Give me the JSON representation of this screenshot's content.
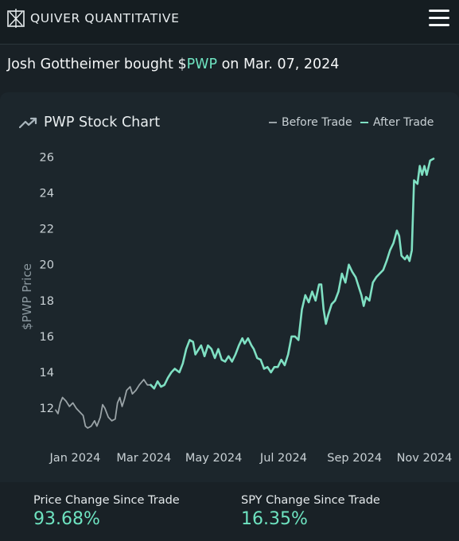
{
  "header": {
    "brand": "QUIVER QUANTITATIVE",
    "logo_icon": "quiver-logo-icon",
    "menu_icon": "hamburger-menu-icon"
  },
  "headline": {
    "prefix": "Josh Gottheimer bought $",
    "ticker": "PWP",
    "suffix": " on Mar. 07, 2024"
  },
  "colors": {
    "background": "#192126",
    "accent": "#6ee3c0",
    "before_trade": "#9aa3a7",
    "after_trade": "#7fe0c3"
  },
  "stats": [
    {
      "label": "Price Change Since Trade",
      "value": "93.68%"
    },
    {
      "label": "SPY Change Since Trade",
      "value": "16.35%"
    }
  ],
  "chart_data": {
    "type": "line",
    "title": "PWP Stock Chart",
    "title_icon": "trending-up-icon",
    "ylabel": "$PWP Price",
    "xlabel": "",
    "ylim": [
      10.5,
      26.5
    ],
    "yticks": [
      12,
      14,
      16,
      18,
      20,
      22,
      24,
      26
    ],
    "xticks": [
      "Jan 2024",
      "Mar 2024",
      "May 2024",
      "Jul 2024",
      "Sep 2024",
      "Nov 2024"
    ],
    "xtick_dates": [
      "2024-01-01",
      "2024-03-01",
      "2024-05-01",
      "2024-07-01",
      "2024-09-01",
      "2024-11-01"
    ],
    "grid": false,
    "legend_position": "top-right",
    "series": [
      {
        "name": "Before Trade",
        "color": "#9aa3a7",
        "points": [
          [
            "2023-12-15",
            11.9
          ],
          [
            "2023-12-17",
            11.7
          ],
          [
            "2023-12-19",
            12.3
          ],
          [
            "2023-12-21",
            12.6
          ],
          [
            "2023-12-24",
            12.4
          ],
          [
            "2023-12-27",
            12.1
          ],
          [
            "2023-12-30",
            12.3
          ],
          [
            "2024-01-02",
            12.0
          ],
          [
            "2024-01-05",
            11.8
          ],
          [
            "2024-01-08",
            11.6
          ],
          [
            "2024-01-10",
            11.0
          ],
          [
            "2024-01-12",
            10.9
          ],
          [
            "2024-01-15",
            11.0
          ],
          [
            "2024-01-18",
            11.3
          ],
          [
            "2024-01-20",
            11.0
          ],
          [
            "2024-01-23",
            11.5
          ],
          [
            "2024-01-25",
            12.2
          ],
          [
            "2024-01-27",
            12.0
          ],
          [
            "2024-01-30",
            11.5
          ],
          [
            "2024-02-02",
            11.3
          ],
          [
            "2024-02-05",
            11.4
          ],
          [
            "2024-02-07",
            12.3
          ],
          [
            "2024-02-09",
            12.6
          ],
          [
            "2024-02-11",
            12.1
          ],
          [
            "2024-02-13",
            12.5
          ],
          [
            "2024-02-15",
            13.0
          ],
          [
            "2024-02-18",
            13.2
          ],
          [
            "2024-02-20",
            12.8
          ],
          [
            "2024-02-23",
            13.0
          ],
          [
            "2024-02-26",
            13.3
          ],
          [
            "2024-03-01",
            13.6
          ],
          [
            "2024-03-04",
            13.3
          ],
          [
            "2024-03-07",
            13.3
          ]
        ]
      },
      {
        "name": "After Trade",
        "color": "#7fe0c3",
        "points": [
          [
            "2024-03-07",
            13.3
          ],
          [
            "2024-03-10",
            13.1
          ],
          [
            "2024-03-13",
            13.5
          ],
          [
            "2024-03-16",
            13.2
          ],
          [
            "2024-03-19",
            13.3
          ],
          [
            "2024-03-22",
            13.7
          ],
          [
            "2024-03-25",
            14.0
          ],
          [
            "2024-03-28",
            14.2
          ],
          [
            "2024-04-01",
            14.0
          ],
          [
            "2024-04-04",
            14.5
          ],
          [
            "2024-04-07",
            15.3
          ],
          [
            "2024-04-10",
            15.8
          ],
          [
            "2024-04-13",
            15.7
          ],
          [
            "2024-04-15",
            15.0
          ],
          [
            "2024-04-18",
            15.3
          ],
          [
            "2024-04-20",
            15.5
          ],
          [
            "2024-04-23",
            14.9
          ],
          [
            "2024-04-26",
            15.5
          ],
          [
            "2024-04-29",
            15.3
          ],
          [
            "2024-05-02",
            14.8
          ],
          [
            "2024-05-05",
            15.3
          ],
          [
            "2024-05-08",
            14.7
          ],
          [
            "2024-05-11",
            14.6
          ],
          [
            "2024-05-14",
            14.9
          ],
          [
            "2024-05-17",
            14.6
          ],
          [
            "2024-05-20",
            15.0
          ],
          [
            "2024-05-23",
            15.5
          ],
          [
            "2024-05-26",
            15.9
          ],
          [
            "2024-05-28",
            15.6
          ],
          [
            "2024-05-31",
            15.9
          ],
          [
            "2024-06-03",
            15.5
          ],
          [
            "2024-06-05",
            15.3
          ],
          [
            "2024-06-08",
            14.8
          ],
          [
            "2024-06-11",
            14.7
          ],
          [
            "2024-06-14",
            14.2
          ],
          [
            "2024-06-17",
            14.3
          ],
          [
            "2024-06-20",
            14.0
          ],
          [
            "2024-06-23",
            14.3
          ],
          [
            "2024-06-26",
            14.3
          ],
          [
            "2024-06-29",
            14.7
          ],
          [
            "2024-07-02",
            14.4
          ],
          [
            "2024-07-05",
            15.0
          ],
          [
            "2024-07-08",
            16.0
          ],
          [
            "2024-07-11",
            16.0
          ],
          [
            "2024-07-14",
            15.8
          ],
          [
            "2024-07-17",
            17.5
          ],
          [
            "2024-07-20",
            18.3
          ],
          [
            "2024-07-23",
            17.9
          ],
          [
            "2024-07-26",
            18.5
          ],
          [
            "2024-07-29",
            18.0
          ],
          [
            "2024-08-01",
            18.9
          ],
          [
            "2024-08-03",
            18.9
          ],
          [
            "2024-08-05",
            17.5
          ],
          [
            "2024-08-07",
            16.7
          ],
          [
            "2024-08-09",
            17.2
          ],
          [
            "2024-08-12",
            17.8
          ],
          [
            "2024-08-15",
            18.0
          ],
          [
            "2024-08-18",
            18.5
          ],
          [
            "2024-08-21",
            19.5
          ],
          [
            "2024-08-24",
            19.0
          ],
          [
            "2024-08-27",
            20.0
          ],
          [
            "2024-08-30",
            19.6
          ],
          [
            "2024-09-02",
            19.3
          ],
          [
            "2024-09-05",
            18.7
          ],
          [
            "2024-09-07",
            18.3
          ],
          [
            "2024-09-09",
            17.7
          ],
          [
            "2024-09-11",
            18.2
          ],
          [
            "2024-09-14",
            18.0
          ],
          [
            "2024-09-17",
            19.0
          ],
          [
            "2024-09-20",
            19.3
          ],
          [
            "2024-09-23",
            19.5
          ],
          [
            "2024-09-26",
            19.7
          ],
          [
            "2024-09-29",
            20.2
          ],
          [
            "2024-10-02",
            20.8
          ],
          [
            "2024-10-05",
            21.2
          ],
          [
            "2024-10-08",
            21.9
          ],
          [
            "2024-10-10",
            21.6
          ],
          [
            "2024-10-12",
            20.5
          ],
          [
            "2024-10-15",
            20.3
          ],
          [
            "2024-10-17",
            20.5
          ],
          [
            "2024-10-19",
            20.2
          ],
          [
            "2024-10-21",
            20.8
          ],
          [
            "2024-10-23",
            24.7
          ],
          [
            "2024-10-26",
            24.5
          ],
          [
            "2024-10-28",
            25.5
          ],
          [
            "2024-10-30",
            25.0
          ],
          [
            "2024-11-01",
            25.5
          ],
          [
            "2024-11-03",
            25.0
          ],
          [
            "2024-11-06",
            25.8
          ],
          [
            "2024-11-09",
            25.9
          ]
        ]
      }
    ]
  }
}
